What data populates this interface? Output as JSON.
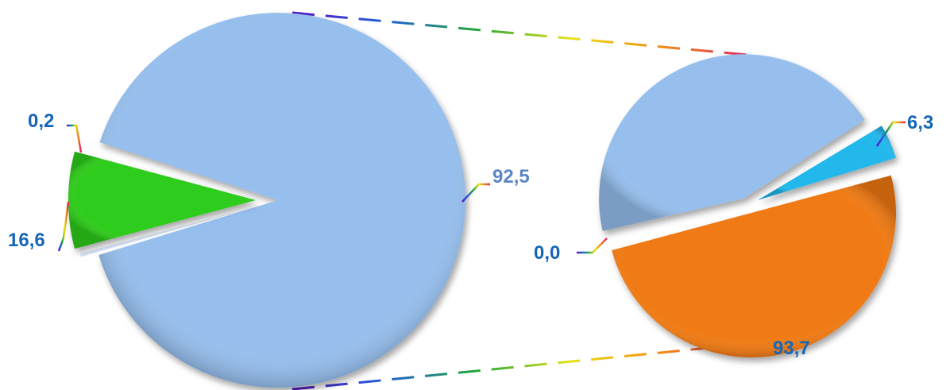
{
  "chart_data": {
    "type": "pie",
    "subtype": "pie-of-pie",
    "title": "",
    "primary_pie": {
      "slices": [
        {
          "label": "92,5",
          "value": 92.5,
          "color": "#96bfee"
        },
        {
          "label": "0,2",
          "value": 0.2,
          "color": "#d4e4f7"
        },
        {
          "label": "16,6",
          "value": 16.6,
          "color": "#2ecc1a"
        }
      ]
    },
    "secondary_pie": {
      "slices": [
        {
          "label": "93,7",
          "value": 93.7,
          "color": "#f07a14"
        },
        {
          "label": "0,0",
          "value": 0.0,
          "color": "#96bfee"
        },
        {
          "label": "6,3",
          "value": 6.3,
          "color": "#24b8ec"
        }
      ]
    },
    "label_colors": {
      "primary_main": "#5a86c6",
      "other": "#1666b8"
    },
    "connector_style": "rainbow-dashed"
  }
}
